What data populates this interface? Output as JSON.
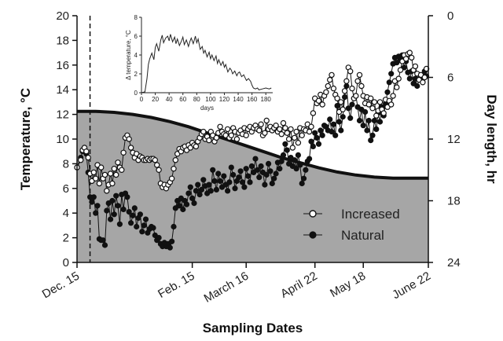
{
  "chart_data": [
    {
      "type": "line",
      "xlabel": "Sampling Dates",
      "ylabel": "Temperature, °C",
      "y2label": "Day length, hr",
      "ylim": [
        0,
        20
      ],
      "y2lim": [
        24,
        0
      ],
      "yticks": [
        0,
        2,
        4,
        6,
        8,
        10,
        12,
        14,
        16,
        18,
        20
      ],
      "y2ticks": [
        0,
        6,
        12,
        18,
        24
      ],
      "xrange_days": [
        0,
        189
      ],
      "xticks": [
        {
          "label": "Dec. 15",
          "day": 0
        },
        {
          "label": "Feb. 15",
          "day": 62
        },
        {
          "label": "March 16",
          "day": 91
        },
        {
          "label": "April 22",
          "day": 128
        },
        {
          "label": "May 18",
          "day": 154
        },
        {
          "label": "June 22",
          "day": 189
        }
      ],
      "treatment_start_day": 7,
      "day_length_area": {
        "name": "Day length",
        "day": [
          0,
          10,
          20,
          30,
          40,
          50,
          60,
          70,
          80,
          90,
          100,
          110,
          120,
          130,
          140,
          150,
          160,
          170,
          180,
          189
        ],
        "hours": [
          9.3,
          9.3,
          9.4,
          9.6,
          9.9,
          10.3,
          10.8,
          11.4,
          12.0,
          12.6,
          13.2,
          13.8,
          14.3,
          14.8,
          15.2,
          15.5,
          15.7,
          15.8,
          15.8,
          15.8
        ]
      },
      "series": [
        {
          "name": "Increased",
          "marker": "open-circle",
          "day": [
            0,
            2,
            3,
            4,
            5,
            6,
            7,
            8,
            9,
            10,
            11,
            12,
            13,
            14,
            15,
            16,
            17,
            18,
            19,
            20,
            21,
            22,
            23,
            24,
            25,
            26,
            27,
            28,
            29,
            30,
            31,
            32,
            33,
            34,
            35,
            36,
            37,
            38,
            39,
            40,
            41,
            42,
            43,
            44,
            45,
            46,
            47,
            48,
            49,
            50,
            51,
            52,
            53,
            54,
            55,
            56,
            57,
            58,
            59,
            60,
            61,
            62,
            63,
            64,
            65,
            66,
            67,
            68,
            69,
            70,
            71,
            72,
            73,
            74,
            75,
            76,
            77,
            78,
            79,
            80,
            81,
            82,
            83,
            84,
            85,
            86,
            87,
            88,
            89,
            90,
            91,
            92,
            93,
            94,
            95,
            96,
            97,
            98,
            99,
            100,
            101,
            102,
            103,
            104,
            105,
            106,
            107,
            108,
            109,
            110,
            111,
            112,
            113,
            114,
            115,
            116,
            117,
            118,
            119,
            120,
            121,
            122,
            123,
            124,
            125,
            126,
            127,
            128,
            129,
            130,
            131,
            132,
            133,
            134,
            135,
            136,
            137,
            138,
            139,
            140,
            141,
            142,
            143,
            144,
            145,
            146,
            147,
            148,
            149,
            150,
            151,
            152,
            153,
            154,
            155,
            156,
            157,
            158,
            159,
            160,
            161,
            162,
            163,
            164,
            165,
            166,
            167,
            168,
            169,
            170,
            171,
            172,
            173,
            174,
            175,
            176,
            177,
            178,
            179,
            180,
            181,
            182,
            183,
            184,
            185,
            186,
            187,
            188
          ],
          "values": [
            7.7,
            8.3,
            9.1,
            9.3,
            9.0,
            8.5,
            7.2,
            6.6,
            7.3,
            6.8,
            7.9,
            6.4,
            7.7,
            6.8,
            7.1,
            5.8,
            6.3,
            7.2,
            6.4,
            7.6,
            7.1,
            8.1,
            7.7,
            7.5,
            8.9,
            10.1,
            10.3,
            10.0,
            9.3,
            8.9,
            8.5,
            8.8,
            8.3,
            8.6,
            8.5,
            8.3,
            8.3,
            8.4,
            8.3,
            8.4,
            8.4,
            8.3,
            7.9,
            7.5,
            6.4,
            6.1,
            6.3,
            6.0,
            6.3,
            6.5,
            6.8,
            7.6,
            8.3,
            8.8,
            9.2,
            9.0,
            9.3,
            9.4,
            9.1,
            9.5,
            9.3,
            9.7,
            9.5,
            9.4,
            9.8,
            10.1,
            10.4,
            10.6,
            10.0,
            10.2,
            9.9,
            10.6,
            10.3,
            9.8,
            10.1,
            10.5,
            11.0,
            10.6,
            10.4,
            10.3,
            10.8,
            10.1,
            10.3,
            10.9,
            10.6,
            10.0,
            10.5,
            10.7,
            10.4,
            10.9,
            10.3,
            10.8,
            11.0,
            10.6,
            10.9,
            11.1,
            10.8,
            10.7,
            11.2,
            10.3,
            10.5,
            11.5,
            10.8,
            11.0,
            10.7,
            10.9,
            11.1,
            10.6,
            10.8,
            10.4,
            11.3,
            10.9,
            10.5,
            10.0,
            10.8,
            9.3,
            10.1,
            10.6,
            9.7,
            10.9,
            10.3,
            10.8,
            10.7,
            11.2,
            10.6,
            11.0,
            12.1,
            13.3,
            12.9,
            13.1,
            13.6,
            12.8,
            13.5,
            13.8,
            14.3,
            14.8,
            15.2,
            14.1,
            13.6,
            13.3,
            12.2,
            13.0,
            12.4,
            13.9,
            14.7,
            15.8,
            15.5,
            14.1,
            13.3,
            13.5,
            14.7,
            15.2,
            14.3,
            13.5,
            12.9,
            13.4,
            12.8,
            13.3,
            12.5,
            13.0,
            11.9,
            12.3,
            13.0,
            12.4,
            12.1,
            13.2,
            12.6,
            13.1,
            12.8,
            13.5,
            14.7,
            14.2,
            14.9,
            15.6,
            16.3,
            16.8,
            16.5,
            16.9,
            17.0,
            16.6,
            15.6,
            15.9,
            15.3,
            14.8,
            15.2,
            14.6,
            15.0,
            15.7,
            15.4,
            15.8
          ]
        },
        {
          "name": "Natural",
          "marker": "filled-circle",
          "day": [
            0,
            2,
            3,
            4,
            5,
            6,
            7,
            8,
            9,
            10,
            11,
            12,
            13,
            14,
            15,
            16,
            17,
            18,
            19,
            20,
            21,
            22,
            23,
            24,
            25,
            26,
            27,
            28,
            29,
            30,
            31,
            32,
            33,
            34,
            35,
            36,
            37,
            38,
            39,
            40,
            41,
            42,
            43,
            44,
            45,
            46,
            47,
            48,
            49,
            50,
            51,
            52,
            53,
            54,
            55,
            56,
            57,
            58,
            59,
            60,
            61,
            62,
            63,
            64,
            65,
            66,
            67,
            68,
            69,
            70,
            71,
            72,
            73,
            74,
            75,
            76,
            77,
            78,
            79,
            80,
            81,
            82,
            83,
            84,
            85,
            86,
            87,
            88,
            89,
            90,
            91,
            92,
            93,
            94,
            95,
            96,
            97,
            98,
            99,
            100,
            101,
            102,
            103,
            104,
            105,
            106,
            107,
            108,
            109,
            110,
            111,
            112,
            113,
            114,
            115,
            116,
            117,
            118,
            119,
            120,
            121,
            122,
            123,
            124,
            125,
            126,
            127,
            128,
            129,
            130,
            131,
            132,
            133,
            134,
            135,
            136,
            137,
            138,
            139,
            140,
            141,
            142,
            143,
            144,
            145,
            146,
            147,
            148,
            149,
            150,
            151,
            152,
            153,
            154,
            155,
            156,
            157,
            158,
            159,
            160,
            161,
            162,
            163,
            164,
            165,
            166,
            167,
            168,
            169,
            170,
            171,
            172,
            173,
            174,
            175,
            176,
            177,
            178,
            179,
            180,
            181,
            182,
            183,
            184,
            185,
            186,
            187,
            188
          ],
          "values": [
            7.7,
            8.5,
            9.0,
            9.3,
            8.8,
            7.3,
            5.3,
            4.9,
            5.3,
            4.0,
            4.6,
            1.9,
            1.8,
            1.8,
            1.4,
            4.2,
            4.8,
            3.5,
            5.0,
            3.9,
            5.4,
            4.6,
            3.1,
            5.5,
            4.3,
            5.6,
            5.3,
            4.1,
            3.2,
            3.8,
            4.4,
            2.9,
            3.6,
            3.9,
            2.5,
            3.0,
            3.5,
            2.4,
            2.7,
            2.9,
            2.8,
            2.2,
            1.8,
            2.0,
            1.5,
            1.3,
            1.6,
            1.3,
            1.5,
            1.2,
            1.7,
            2.9,
            4.4,
            5.0,
            4.6,
            5.2,
            4.3,
            5.0,
            4.7,
            5.6,
            6.1,
            5.2,
            4.8,
            5.8,
            6.3,
            5.5,
            5.9,
            6.7,
            6.2,
            5.6,
            6.3,
            5.8,
            7.5,
            6.6,
            5.9,
            7.2,
            6.6,
            6.1,
            7.0,
            6.3,
            5.8,
            6.5,
            7.7,
            7.1,
            6.0,
            6.6,
            6.9,
            7.4,
            6.5,
            6.1,
            7.6,
            7.0,
            6.5,
            7.8,
            7.3,
            8.4,
            7.5,
            6.9,
            7.8,
            7.3,
            6.3,
            7.1,
            8.0,
            7.4,
            6.4,
            6.8,
            7.2,
            8.1,
            7.6,
            8.2,
            8.7,
            9.6,
            9.1,
            8.0,
            8.5,
            7.8,
            8.3,
            7.6,
            8.7,
            7.9,
            6.4,
            6.8,
            7.5,
            8.2,
            8.4,
            9.8,
            9.4,
            10.5,
            10.1,
            9.6,
            10.7,
            10.3,
            11.1,
            11.0,
            10.7,
            11.6,
            10.6,
            11.2,
            10.3,
            12.7,
            11.4,
            10.7,
            11.8,
            13.4,
            14.3,
            12.5,
            11.7,
            12.8,
            13.3,
            13.5,
            12.6,
            11.5,
            12.4,
            11.1,
            12.2,
            10.7,
            11.5,
            9.9,
            10.3,
            11.5,
            10.8,
            12.1,
            11.4,
            12.6,
            11.9,
            12.9,
            13.8,
            14.6,
            15.3,
            16.1,
            16.6,
            16.2,
            16.7,
            16.4,
            16.8,
            15.8,
            16.3,
            15.4,
            14.9,
            15.5,
            14.5,
            14.9,
            14.3,
            14.8,
            15.2,
            14.9,
            15.5,
            15.1
          ]
        }
      ],
      "legend": {
        "placement": "bottom-right-inside",
        "entries": [
          "Increased",
          "Natural"
        ]
      },
      "grid": false
    },
    {
      "type": "line",
      "xlabel": "days",
      "ylabel": "Δ temperature, °C",
      "xlim": [
        0,
        190
      ],
      "ylim": [
        0,
        8
      ],
      "xticks": [
        0,
        20,
        40,
        60,
        80,
        100,
        120,
        140,
        160,
        180
      ],
      "yticks": [
        0,
        2,
        4,
        6,
        8
      ],
      "series": [
        {
          "name": "",
          "x": [
            0,
            5,
            8,
            10,
            12,
            15,
            18,
            20,
            22,
            25,
            28,
            30,
            32,
            35,
            38,
            40,
            42,
            45,
            48,
            50,
            52,
            55,
            58,
            60,
            62,
            65,
            68,
            70,
            72,
            75,
            78,
            80,
            82,
            85,
            88,
            90,
            92,
            95,
            98,
            100,
            102,
            105,
            108,
            110,
            112,
            115,
            118,
            120,
            122,
            125,
            128,
            130,
            132,
            135,
            138,
            140,
            142,
            145,
            148,
            150,
            152,
            155,
            158,
            160,
            162,
            165,
            168,
            170,
            175,
            180,
            185,
            188
          ],
          "values": [
            0,
            0.1,
            1.5,
            3.0,
            3.6,
            4.2,
            3.5,
            4.8,
            5.2,
            4.4,
            5.6,
            6.1,
            5.3,
            5.8,
            6.0,
            5.5,
            6.2,
            5.4,
            5.9,
            5.2,
            5.7,
            5.0,
            5.5,
            5.9,
            5.1,
            5.6,
            4.9,
            5.4,
            5.8,
            5.2,
            6.0,
            5.3,
            5.7,
            4.6,
            4.9,
            4.2,
            4.5,
            3.8,
            4.3,
            3.6,
            4.0,
            3.4,
            3.9,
            3.1,
            3.5,
            2.9,
            3.3,
            2.7,
            3.0,
            2.2,
            2.6,
            2.4,
            2.0,
            2.3,
            1.8,
            2.1,
            2.2,
            1.7,
            1.9,
            1.6,
            1.3,
            1.5,
            1.2,
            0.8,
            0.5,
            0.4,
            0.5,
            0.3,
            0.4,
            0.5,
            0.4,
            0.5
          ]
        }
      ],
      "grid": false
    }
  ]
}
